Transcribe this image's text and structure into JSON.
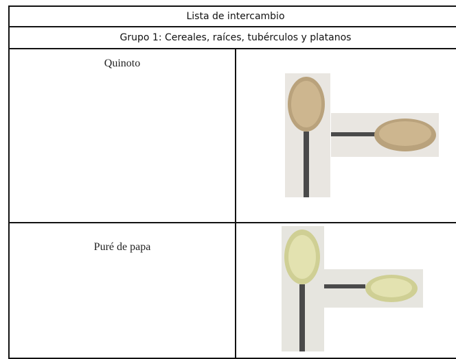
{
  "table": {
    "title": "Lista de intercambio",
    "subtitle": "Grupo 1: Cereales, raíces, tubérculos y platanos",
    "rows": [
      [
        "Quinoto"
      ],
      [
        "Puré de papa"
      ]
    ]
  }
}
